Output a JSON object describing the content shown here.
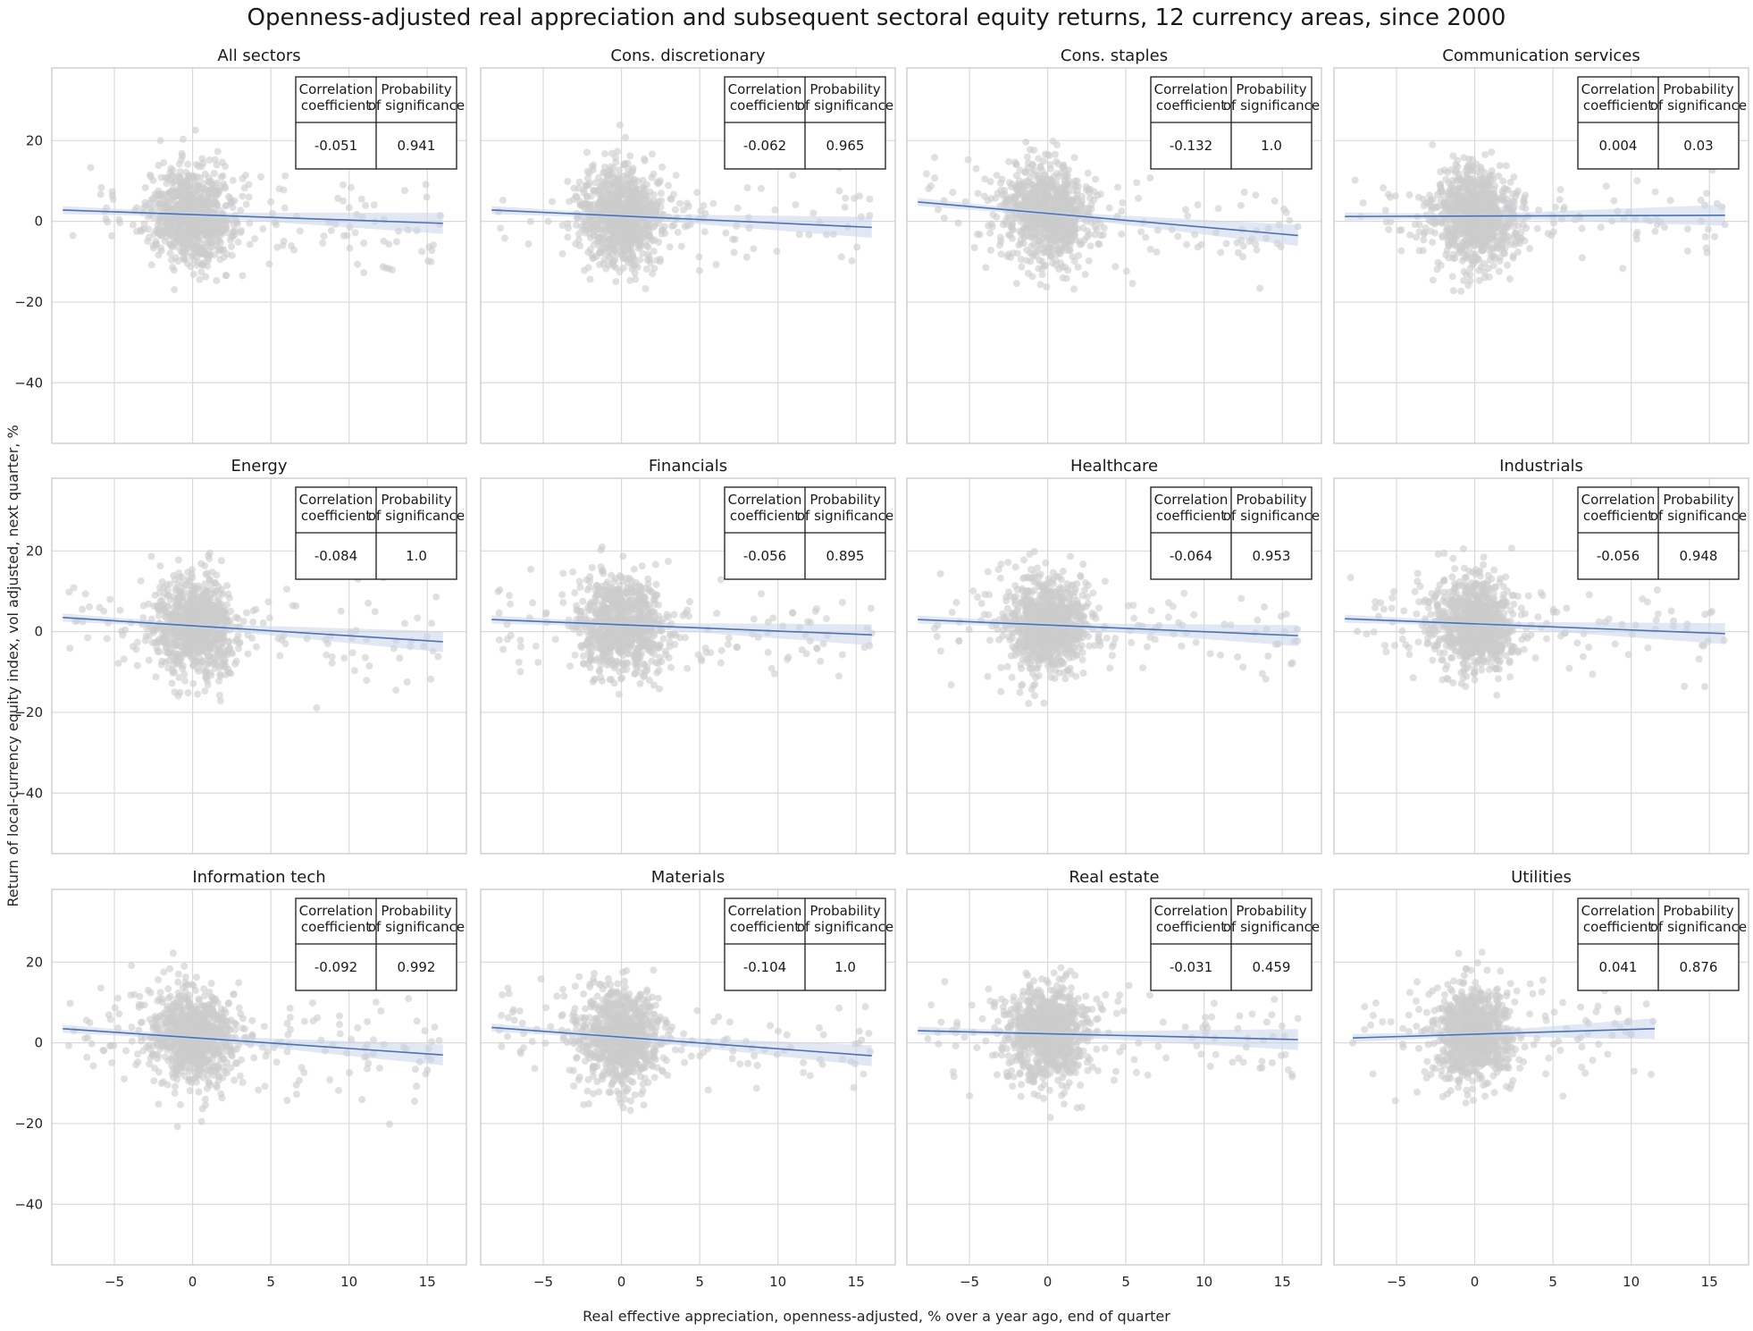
{
  "chart_data": {
    "type": "scatter",
    "title": "Openness-adjusted real appreciation and subsequent sectoral equity returns, 12 currency areas, since 2000",
    "xlabel": "Real effective appreciation, openness-adjusted, % over a year ago, end of quarter",
    "ylabel": "Return of local-currency equity index, vol adjusted, next quarter, %",
    "xlim": [
      -9,
      17.5
    ],
    "ylim": [
      -55,
      38
    ],
    "xticks": [
      -5,
      0,
      5,
      10,
      15
    ],
    "yticks": [
      -40,
      -20,
      0,
      20
    ],
    "grid": true,
    "point_color": "#cccccc",
    "line_color": "#4c72b0",
    "band_color": "#c8d4ea",
    "table_headers": [
      "Correlation\ncoefficient",
      "Probability\nof significance"
    ],
    "panels": [
      {
        "title": "All sectors",
        "correlation": "-0.051",
        "significance": "0.941",
        "fit_start": [
          -8.3,
          2.8
        ],
        "fit_end": [
          16.0,
          -0.5
        ],
        "xmax": 16.0
      },
      {
        "title": "Cons. discretionary",
        "correlation": "-0.062",
        "significance": "0.965",
        "fit_start": [
          -8.3,
          2.8
        ],
        "fit_end": [
          16.0,
          -1.5
        ],
        "xmax": 16.0
      },
      {
        "title": "Cons. staples",
        "correlation": "-0.132",
        "significance": "1.0",
        "fit_start": [
          -8.3,
          4.8
        ],
        "fit_end": [
          16.0,
          -3.5
        ],
        "xmax": 16.0
      },
      {
        "title": "Communication services",
        "correlation": "0.004",
        "significance": "0.03",
        "fit_start": [
          -8.3,
          1.2
        ],
        "fit_end": [
          16.0,
          1.5
        ],
        "xmax": 16.0
      },
      {
        "title": "Energy",
        "correlation": "-0.084",
        "significance": "1.0",
        "fit_start": [
          -8.3,
          3.5
        ],
        "fit_end": [
          16.0,
          -2.5
        ],
        "xmax": 16.0
      },
      {
        "title": "Financials",
        "correlation": "-0.056",
        "significance": "0.895",
        "fit_start": [
          -8.3,
          3.0
        ],
        "fit_end": [
          16.0,
          -0.8
        ],
        "xmax": 16.0
      },
      {
        "title": "Healthcare",
        "correlation": "-0.064",
        "significance": "0.953",
        "fit_start": [
          -8.3,
          3.0
        ],
        "fit_end": [
          16.0,
          -1.0
        ],
        "xmax": 16.0
      },
      {
        "title": "Industrials",
        "correlation": "-0.056",
        "significance": "0.948",
        "fit_start": [
          -8.3,
          3.2
        ],
        "fit_end": [
          16.0,
          -0.5
        ],
        "xmax": 16.0
      },
      {
        "title": "Information tech",
        "correlation": "-0.092",
        "significance": "0.992",
        "fit_start": [
          -8.3,
          3.5
        ],
        "fit_end": [
          16.0,
          -3.0
        ],
        "xmax": 16.0
      },
      {
        "title": "Materials",
        "correlation": "-0.104",
        "significance": "1.0",
        "fit_start": [
          -8.3,
          3.8
        ],
        "fit_end": [
          16.0,
          -3.2
        ],
        "xmax": 16.0
      },
      {
        "title": "Real estate",
        "correlation": "-0.031",
        "significance": "0.459",
        "fit_start": [
          -8.3,
          3.0
        ],
        "fit_end": [
          16.0,
          0.8
        ],
        "xmax": 16.0
      },
      {
        "title": "Utilities",
        "correlation": "0.041",
        "significance": "0.876",
        "fit_start": [
          -7.8,
          1.2
        ],
        "fit_end": [
          11.5,
          3.5
        ],
        "xmax": 11.5
      }
    ]
  }
}
